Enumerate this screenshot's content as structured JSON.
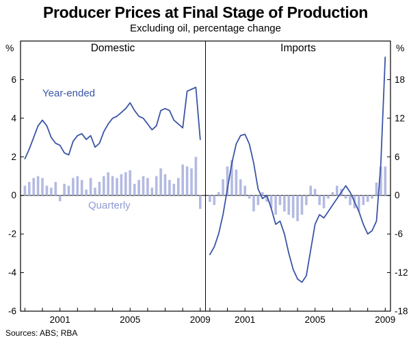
{
  "header": {
    "title": "Producer Prices at Final Stage of Production",
    "subtitle": "Excluding oil, percentage change"
  },
  "labels": {
    "percent_left": "%",
    "percent_right": "%",
    "domestic": "Domestic",
    "imports": "Imports",
    "year_ended": "Year-ended",
    "quarterly": "Quarterly"
  },
  "footer": {
    "sources": "Sources: ABS; RBA"
  },
  "colors": {
    "line": "#3b54a5",
    "bar": "#b3bae2",
    "quarterly_label": "#8f9ad4",
    "frame": "#000000"
  },
  "chart_data": [
    {
      "type": "line+bar",
      "title": "Domestic",
      "xlabel": "",
      "ylabel": "%",
      "ylim": [
        -6,
        8
      ],
      "yticks": [
        -6,
        -4,
        -2,
        0,
        2,
        4,
        6
      ],
      "xticks": [
        1999,
        2000,
        2001,
        2002,
        2003,
        2004,
        2005,
        2006,
        2007,
        2008,
        2009
      ],
      "xtick_labels": [
        {
          "x": 2001,
          "label": "2001"
        },
        {
          "x": 2005,
          "label": "2005"
        },
        {
          "x": 2009,
          "label": "2009"
        }
      ],
      "x": [
        1999,
        1999.25,
        1999.5,
        1999.75,
        2000,
        2000.25,
        2000.5,
        2000.75,
        2001,
        2001.25,
        2001.5,
        2001.75,
        2002,
        2002.25,
        2002.5,
        2002.75,
        2003,
        2003.25,
        2003.5,
        2003.75,
        2004,
        2004.25,
        2004.5,
        2004.75,
        2005,
        2005.25,
        2005.5,
        2005.75,
        2006,
        2006.25,
        2006.5,
        2006.75,
        2007,
        2007.25,
        2007.5,
        2007.75,
        2008,
        2008.25,
        2008.5,
        2008.75,
        2009
      ],
      "series": [
        {
          "name": "Year-ended",
          "type": "line",
          "values": [
            1.9,
            2.4,
            3.0,
            3.6,
            3.9,
            3.6,
            3.0,
            2.7,
            2.6,
            2.2,
            2.1,
            2.8,
            3.1,
            3.2,
            2.9,
            3.1,
            2.5,
            2.7,
            3.3,
            3.7,
            4.0,
            4.1,
            4.3,
            4.5,
            4.8,
            4.4,
            4.1,
            4.0,
            3.7,
            3.4,
            3.6,
            4.4,
            4.5,
            4.4,
            3.9,
            3.7,
            3.5,
            5.4,
            5.5,
            5.6,
            2.9
          ]
        },
        {
          "name": "Quarterly",
          "type": "bar",
          "values": [
            0.5,
            0.7,
            0.9,
            1.0,
            0.9,
            0.5,
            0.4,
            0.7,
            -0.3,
            0.6,
            0.5,
            0.9,
            1.0,
            0.8,
            0.3,
            0.9,
            0.4,
            0.7,
            1.0,
            1.2,
            1.0,
            0.9,
            1.1,
            1.2,
            1.3,
            0.6,
            0.8,
            1.0,
            0.9,
            0.4,
            1.0,
            1.4,
            1.1,
            0.8,
            0.6,
            0.9,
            1.6,
            1.5,
            1.4,
            2.0,
            -0.7
          ]
        }
      ]
    },
    {
      "type": "line+bar",
      "title": "Imports",
      "xlabel": "",
      "ylabel": "%",
      "ylim": [
        -18,
        24
      ],
      "yticks": [
        -18,
        -12,
        -6,
        0,
        6,
        12,
        18
      ],
      "xticks": [
        1999,
        2000,
        2001,
        2002,
        2003,
        2004,
        2005,
        2006,
        2007,
        2008,
        2009
      ],
      "xtick_labels": [
        {
          "x": 2001,
          "label": "2001"
        },
        {
          "x": 2005,
          "label": "2005"
        },
        {
          "x": 2009,
          "label": "2009"
        }
      ],
      "x": [
        1999,
        1999.25,
        1999.5,
        1999.75,
        2000,
        2000.25,
        2000.5,
        2000.75,
        2001,
        2001.25,
        2001.5,
        2001.75,
        2002,
        2002.25,
        2002.5,
        2002.75,
        2003,
        2003.25,
        2003.5,
        2003.75,
        2004,
        2004.25,
        2004.5,
        2004.75,
        2005,
        2005.25,
        2005.5,
        2005.75,
        2006,
        2006.25,
        2006.5,
        2006.75,
        2007,
        2007.25,
        2007.5,
        2007.75,
        2008,
        2008.25,
        2008.5,
        2008.75,
        2009
      ],
      "series": [
        {
          "name": "Year-ended",
          "type": "line",
          "values": [
            -9.2,
            -8.0,
            -6.0,
            -3.0,
            1.0,
            5.0,
            8.0,
            9.3,
            9.5,
            8.0,
            5.0,
            1.0,
            -0.5,
            0.0,
            -2.0,
            -4.5,
            -4.0,
            -6.0,
            -9.0,
            -11.5,
            -13.0,
            -13.5,
            -12.5,
            -8.5,
            -4.5,
            -3.0,
            -3.5,
            -2.5,
            -1.5,
            -0.5,
            0.5,
            1.5,
            0.5,
            -1.0,
            -2.5,
            -4.5,
            -6.0,
            -5.5,
            -4.0,
            5.0,
            21.5
          ]
        },
        {
          "name": "Quarterly",
          "type": "bar",
          "values": [
            -1.0,
            -1.5,
            0.5,
            2.5,
            4.5,
            5.5,
            4.0,
            2.5,
            1.5,
            -0.5,
            -2.5,
            -1.5,
            0.5,
            -1.0,
            -2.0,
            -3.0,
            -1.5,
            -2.5,
            -3.0,
            -3.5,
            -4.0,
            -3.0,
            -1.5,
            1.5,
            1.0,
            -1.5,
            -2.0,
            -0.5,
            0.5,
            1.5,
            1.0,
            -0.5,
            -1.5,
            -2.0,
            -2.5,
            -1.5,
            -1.0,
            -0.5,
            2.0,
            4.5,
            4.5
          ]
        }
      ]
    }
  ]
}
